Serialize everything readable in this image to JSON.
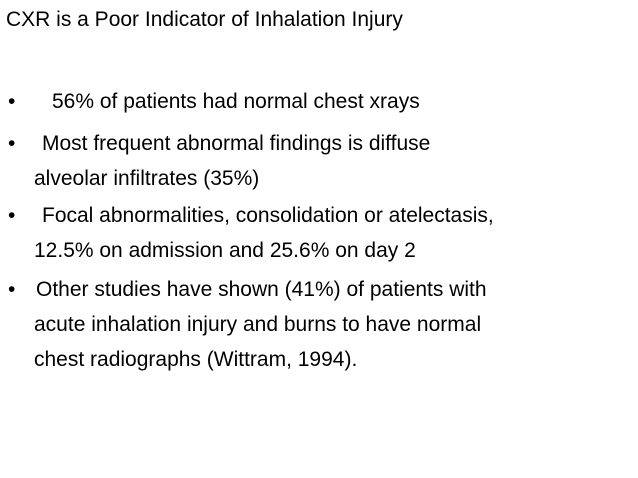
{
  "title": "CXR is a Poor Indicator of Inhalation Injury",
  "bullets": [
    {
      "lines": [
        "56% of patients had normal chest xrays"
      ]
    },
    {
      "lines": [
        "Most frequent abnormal findings is diffuse",
        "alveolar infiltrates (35%)"
      ]
    },
    {
      "lines": [
        "Focal abnormalities, consolidation or atelectasis,",
        "12.5% on admission and 25.6% on day 2"
      ]
    },
    {
      "lines": [
        "Other studies have shown (41%) of patients with",
        "acute inhalation injury and burns to have normal",
        "chest radiographs  (Wittram, 1994)."
      ]
    }
  ]
}
